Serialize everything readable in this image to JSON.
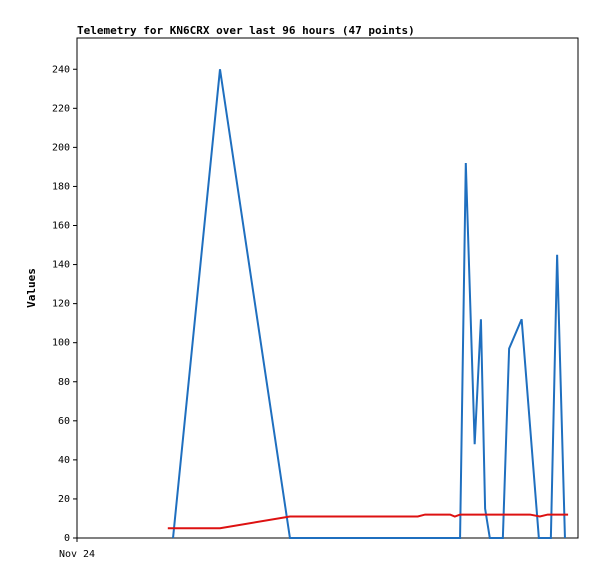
{
  "chart_data": {
    "type": "line",
    "title": "Telemetry for KN6CRX over last 96 hours (47 points)",
    "y_label": "Values",
    "xlim": [
      0,
      96
    ],
    "xticks": [
      {
        "value": 0,
        "label": "Nov 24"
      }
    ],
    "ylim": [
      0,
      256
    ],
    "yticks": [
      0,
      20,
      40,
      60,
      80,
      100,
      120,
      140,
      160,
      180,
      200,
      220,
      240
    ],
    "series": [
      {
        "color": "#1f6fbf",
        "x": [
          18.4,
          27.4,
          40.8,
          73.4,
          74.5,
          76.2,
          77.4,
          78.2,
          79.1,
          81.6,
          82.8,
          85.2,
          88.5,
          90.8,
          92.0,
          93.5
        ],
        "values": [
          0,
          240,
          0,
          0,
          192,
          48,
          112,
          15,
          0,
          0,
          97,
          112,
          0,
          0,
          145,
          0
        ]
      },
      {
        "color": "#dd1111",
        "x": [
          17.4,
          27.4,
          40.8,
          65.3,
          66.7,
          71.5,
          72.4,
          73.4,
          86.8,
          88.7,
          90.2,
          94.1
        ],
        "values": [
          5,
          5,
          11,
          11,
          12,
          12,
          11,
          12,
          12,
          11,
          12,
          12
        ]
      }
    ]
  }
}
